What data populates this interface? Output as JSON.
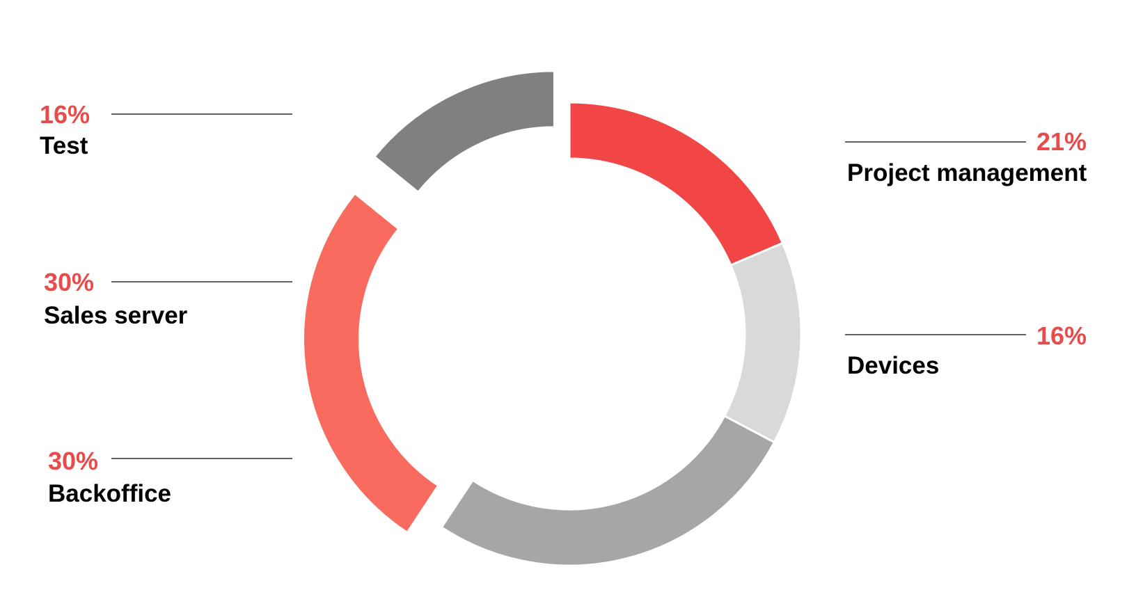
{
  "chart_data": {
    "type": "pie",
    "variant": "donut",
    "title": "",
    "slices": [
      {
        "label": "Project management",
        "value": 21,
        "display": "21%",
        "color": "#f24646",
        "exploded": false
      },
      {
        "label": "Devices",
        "value": 16,
        "display": "16%",
        "color": "#d9d9d9",
        "exploded": false
      },
      {
        "label": "Backoffice",
        "value": 30,
        "display": "30%",
        "color": "#a6a6a6",
        "exploded": false
      },
      {
        "label": "Sales server",
        "value": 30,
        "display": "30%",
        "color": "#f96b5f",
        "exploded": true
      },
      {
        "label": "Test",
        "value": 16,
        "display": "16%",
        "color": "#808080",
        "exploded": true
      }
    ],
    "label_color": "#000000",
    "percent_color": "#e74c4c",
    "legend": "none"
  }
}
